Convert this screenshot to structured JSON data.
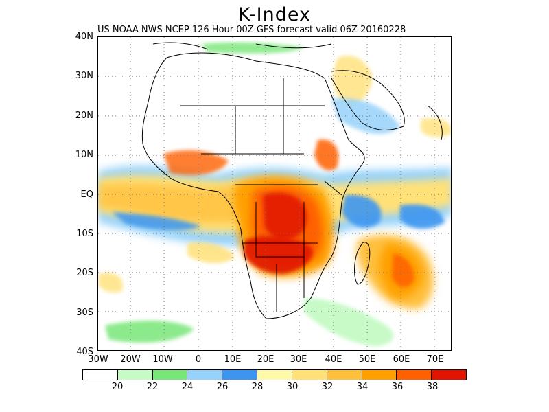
{
  "title": "K-Index",
  "subtitle": "US NOAA NWS NCEP 126 Hour 00Z GFS forecast valid 06Z 20160228",
  "y_ticks": [
    "40N",
    "30N",
    "20N",
    "10N",
    "EQ",
    "10S",
    "20S",
    "30S",
    "40S"
  ],
  "x_ticks": [
    "30W",
    "20W",
    "10W",
    "0",
    "10E",
    "20E",
    "30E",
    "40E",
    "50E",
    "60E",
    "70E"
  ],
  "colorbar": {
    "colors": [
      "#ffffff",
      "#c8fac8",
      "#78e678",
      "#96d2fa",
      "#3c96f0",
      "#fffaaa",
      "#ffe178",
      "#ffc03c",
      "#ffa000",
      "#ff6000",
      "#e11400"
    ],
    "labels": [
      "20",
      "22",
      "24",
      "26",
      "28",
      "30",
      "32",
      "34",
      "36",
      "38"
    ]
  }
}
